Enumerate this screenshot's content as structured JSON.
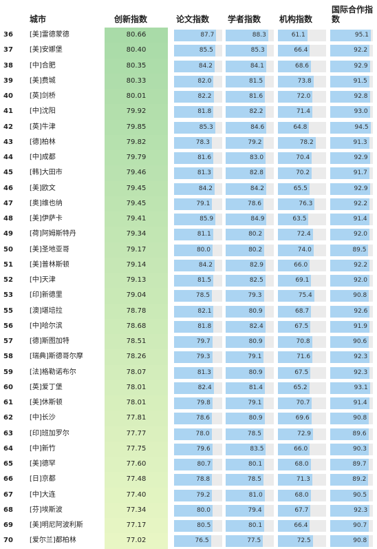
{
  "chart_data": {
    "type": "table",
    "columns": {
      "city": "城市",
      "innovation": "创新指数",
      "paper": "论文指数",
      "scholar": "学者指数",
      "institution": "机构指数",
      "intl": "国际合作指数"
    },
    "rows": [
      {
        "rank": 36,
        "city": "[美]雷德蒙德",
        "innovation": "80.66",
        "paper": "87.7",
        "scholar": "88.3",
        "institution": "61.1",
        "intl": "95.1"
      },
      {
        "rank": 37,
        "city": "[美]安娜堡",
        "innovation": "80.40",
        "paper": "85.5",
        "scholar": "85.3",
        "institution": "66.4",
        "intl": "92.2"
      },
      {
        "rank": 38,
        "city": "[中]合肥",
        "innovation": "80.35",
        "paper": "84.2",
        "scholar": "84.1",
        "institution": "68.6",
        "intl": "92.9"
      },
      {
        "rank": 39,
        "city": "[美]费城",
        "innovation": "80.33",
        "paper": "82.0",
        "scholar": "81.5",
        "institution": "73.8",
        "intl": "91.5"
      },
      {
        "rank": 40,
        "city": "[英]剑桥",
        "innovation": "80.01",
        "paper": "82.2",
        "scholar": "81.6",
        "institution": "72.0",
        "intl": "92.8"
      },
      {
        "rank": 41,
        "city": "[中]沈阳",
        "innovation": "79.92",
        "paper": "81.8",
        "scholar": "82.2",
        "institution": "71.4",
        "intl": "93.0"
      },
      {
        "rank": 42,
        "city": "[英]牛津",
        "innovation": "79.85",
        "paper": "85.3",
        "scholar": "84.6",
        "institution": "64.8",
        "intl": "94.5"
      },
      {
        "rank": 43,
        "city": "[德]柏林",
        "innovation": "79.82",
        "paper": "78.3",
        "scholar": "79.2",
        "institution": "78.2",
        "intl": "91.3"
      },
      {
        "rank": 44,
        "city": "[中]成都",
        "innovation": "79.79",
        "paper": "81.6",
        "scholar": "83.0",
        "institution": "70.4",
        "intl": "92.9"
      },
      {
        "rank": 45,
        "city": "[韩]大田市",
        "innovation": "79.46",
        "paper": "81.3",
        "scholar": "82.8",
        "institution": "70.2",
        "intl": "91.7"
      },
      {
        "rank": 46,
        "city": "[美]欧文",
        "innovation": "79.45",
        "paper": "84.2",
        "scholar": "84.2",
        "institution": "65.5",
        "intl": "92.9"
      },
      {
        "rank": 47,
        "city": "[奥]维也纳",
        "innovation": "79.45",
        "paper": "79.1",
        "scholar": "78.6",
        "institution": "76.3",
        "intl": "92.2"
      },
      {
        "rank": 48,
        "city": "[美]伊萨卡",
        "innovation": "79.41",
        "paper": "85.9",
        "scholar": "84.9",
        "institution": "63.5",
        "intl": "91.4"
      },
      {
        "rank": 49,
        "city": "[荷]阿姆斯特丹",
        "innovation": "79.34",
        "paper": "81.1",
        "scholar": "80.2",
        "institution": "72.4",
        "intl": "92.0"
      },
      {
        "rank": 50,
        "city": "[美]圣地亚哥",
        "innovation": "79.17",
        "paper": "80.0",
        "scholar": "80.2",
        "institution": "74.0",
        "intl": "89.5"
      },
      {
        "rank": 51,
        "city": "[美]普林斯顿",
        "innovation": "79.14",
        "paper": "84.2",
        "scholar": "82.9",
        "institution": "66.0",
        "intl": "92.2"
      },
      {
        "rank": 52,
        "city": "[中]天津",
        "innovation": "79.13",
        "paper": "81.5",
        "scholar": "82.5",
        "institution": "69.1",
        "intl": "92.0"
      },
      {
        "rank": 53,
        "city": "[印]新德里",
        "innovation": "79.04",
        "paper": "78.5",
        "scholar": "79.3",
        "institution": "75.4",
        "intl": "90.8"
      },
      {
        "rank": 55,
        "city": "[澳]堪培拉",
        "innovation": "78.78",
        "paper": "82.1",
        "scholar": "80.9",
        "institution": "68.7",
        "intl": "92.6"
      },
      {
        "rank": 56,
        "city": "[中]哈尔滨",
        "innovation": "78.68",
        "paper": "81.8",
        "scholar": "82.4",
        "institution": "67.5",
        "intl": "91.9"
      },
      {
        "rank": 57,
        "city": "[德]斯图加特",
        "innovation": "78.51",
        "paper": "79.7",
        "scholar": "80.9",
        "institution": "70.8",
        "intl": "90.6"
      },
      {
        "rank": 58,
        "city": "[瑞典]斯德哥尔摩",
        "innovation": "78.26",
        "paper": "79.3",
        "scholar": "79.1",
        "institution": "71.6",
        "intl": "92.3"
      },
      {
        "rank": 59,
        "city": "[法]格勒诺布尔",
        "innovation": "78.07",
        "paper": "81.3",
        "scholar": "80.9",
        "institution": "67.5",
        "intl": "92.3"
      },
      {
        "rank": 60,
        "city": "[英]爱丁堡",
        "innovation": "78.01",
        "paper": "82.4",
        "scholar": "81.4",
        "institution": "65.2",
        "intl": "93.1"
      },
      {
        "rank": 61,
        "city": "[美]休斯顿",
        "innovation": "78.01",
        "paper": "79.8",
        "scholar": "79.1",
        "institution": "70.7",
        "intl": "91.4"
      },
      {
        "rank": 62,
        "city": "[中]长沙",
        "innovation": "77.81",
        "paper": "78.6",
        "scholar": "80.9",
        "institution": "69.6",
        "intl": "90.8"
      },
      {
        "rank": 63,
        "city": "[印]班加罗尔",
        "innovation": "77.77",
        "paper": "78.0",
        "scholar": "78.5",
        "institution": "72.9",
        "intl": "89.6"
      },
      {
        "rank": 64,
        "city": "[中]新竹",
        "innovation": "77.75",
        "paper": "79.6",
        "scholar": "83.5",
        "institution": "66.0",
        "intl": "90.3"
      },
      {
        "rank": 65,
        "city": "[美]德罕",
        "innovation": "77.60",
        "paper": "80.7",
        "scholar": "80.1",
        "institution": "68.0",
        "intl": "89.7"
      },
      {
        "rank": 66,
        "city": "[日]京都",
        "innovation": "77.48",
        "paper": "78.8",
        "scholar": "78.5",
        "institution": "71.3",
        "intl": "89.2"
      },
      {
        "rank": 67,
        "city": "[中]大连",
        "innovation": "77.40",
        "paper": "79.2",
        "scholar": "81.0",
        "institution": "68.0",
        "intl": "90.5"
      },
      {
        "rank": 68,
        "city": "[芬]埃斯波",
        "innovation": "77.34",
        "paper": "80.0",
        "scholar": "79.4",
        "institution": "67.7",
        "intl": "92.3"
      },
      {
        "rank": 69,
        "city": "[美]明尼阿波利斯",
        "innovation": "77.17",
        "paper": "80.5",
        "scholar": "80.1",
        "institution": "66.4",
        "intl": "90.7"
      },
      {
        "rank": 70,
        "city": "[爱尔兰]都柏林",
        "innovation": "77.02",
        "paper": "76.5",
        "scholar": "77.5",
        "institution": "72.5",
        "intl": "90.8"
      }
    ],
    "colors": {
      "innovation_top": "#a9dba8",
      "innovation_bottom": "#e8f6c4",
      "bar_fill": "#abd4f2",
      "bar_track": "#ebebeb"
    }
  }
}
